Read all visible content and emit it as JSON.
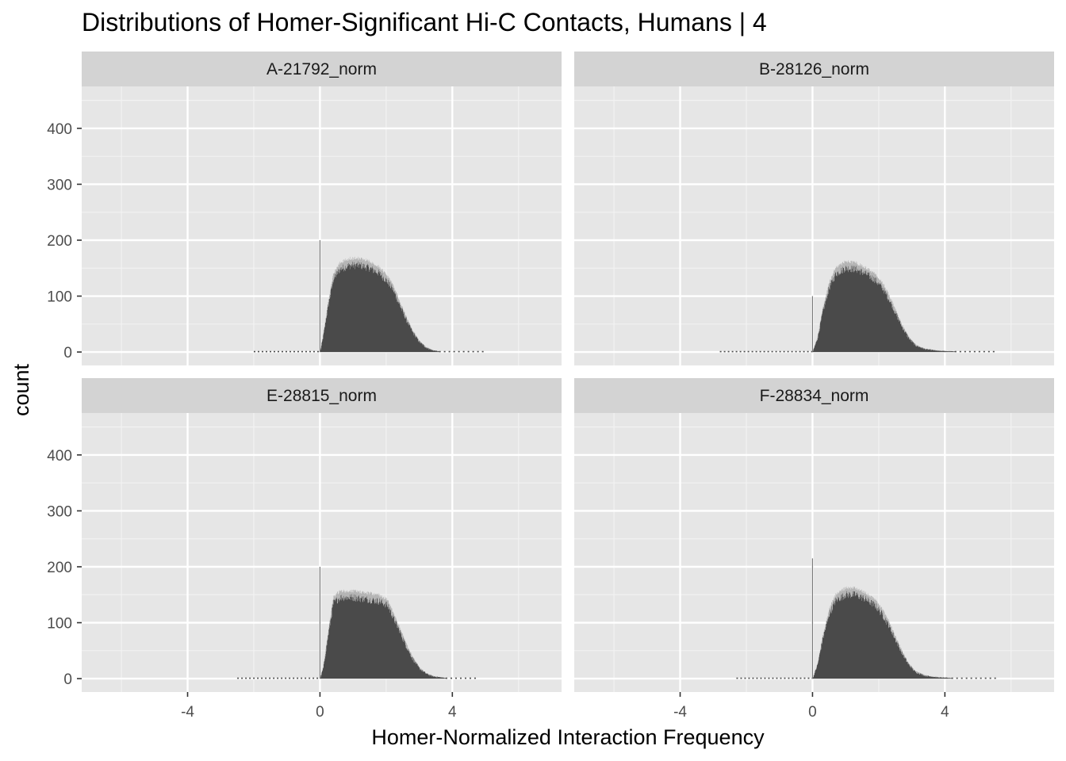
{
  "chart_data": {
    "type": "histogram",
    "title": "Distributions of Homer-Significant Hi-C Contacts, Humans | 4",
    "xlabel": "Homer-Normalized Interaction Frequency",
    "ylabel": "count",
    "xlim": [
      -7.2,
      7.3
    ],
    "ylim": [
      -24,
      475
    ],
    "x_ticks": [
      -4,
      0,
      4
    ],
    "x_tick_labels": [
      "-4",
      "0",
      "4"
    ],
    "y_ticks": [
      0,
      100,
      200,
      300,
      400
    ],
    "y_tick_labels": [
      "0",
      "100",
      "200",
      "300",
      "400"
    ],
    "grid": true,
    "legend": "none",
    "bar_color": "#4a4a4a",
    "panel_background": "#e6e6e6",
    "strip_background": "#d3d3d3",
    "panels": [
      {
        "name": "A-21792_norm",
        "tail_left": -2.0,
        "spike_x": 0.0,
        "spike_y": 200,
        "rise_x": 0.0,
        "fall_x": 3.6,
        "shape": [
          [
            0.0,
            0
          ],
          [
            0.1,
            30
          ],
          [
            0.25,
            85
          ],
          [
            0.4,
            130
          ],
          [
            0.6,
            148
          ],
          [
            0.9,
            155
          ],
          [
            1.2,
            155
          ],
          [
            1.5,
            150
          ],
          [
            1.8,
            140
          ],
          [
            2.0,
            128
          ],
          [
            2.2,
            112
          ],
          [
            2.4,
            85
          ],
          [
            2.6,
            58
          ],
          [
            2.8,
            35
          ],
          [
            3.0,
            18
          ],
          [
            3.2,
            8
          ],
          [
            3.4,
            3
          ],
          [
            3.6,
            1
          ]
        ],
        "tail_right": 5.0
      },
      {
        "name": "B-28126_norm",
        "tail_left": -2.8,
        "spike_x": 0.0,
        "spike_y": 100,
        "rise_x": 0.0,
        "fall_x": 4.3,
        "shape": [
          [
            0.0,
            0
          ],
          [
            0.15,
            25
          ],
          [
            0.3,
            70
          ],
          [
            0.5,
            115
          ],
          [
            0.7,
            140
          ],
          [
            1.0,
            150
          ],
          [
            1.3,
            148
          ],
          [
            1.6,
            140
          ],
          [
            1.9,
            128
          ],
          [
            2.1,
            115
          ],
          [
            2.3,
            95
          ],
          [
            2.5,
            70
          ],
          [
            2.7,
            45
          ],
          [
            2.9,
            25
          ],
          [
            3.1,
            12
          ],
          [
            3.4,
            5
          ],
          [
            3.8,
            2
          ],
          [
            4.3,
            1
          ]
        ],
        "tail_right": 5.5
      },
      {
        "name": "E-28815_norm",
        "tail_left": -2.5,
        "spike_x": 0.0,
        "spike_y": 200,
        "rise_x": 0.0,
        "fall_x": 3.8,
        "shape": [
          [
            0.0,
            0
          ],
          [
            0.1,
            20
          ],
          [
            0.25,
            80
          ],
          [
            0.4,
            135
          ],
          [
            0.6,
            145
          ],
          [
            1.0,
            145
          ],
          [
            1.4,
            142
          ],
          [
            1.8,
            138
          ],
          [
            2.05,
            130
          ],
          [
            2.2,
            110
          ],
          [
            2.4,
            85
          ],
          [
            2.6,
            58
          ],
          [
            2.8,
            35
          ],
          [
            3.0,
            18
          ],
          [
            3.2,
            9
          ],
          [
            3.4,
            4
          ],
          [
            3.8,
            1
          ]
        ],
        "tail_right": 4.8
      },
      {
        "name": "F-28834_norm",
        "tail_left": -2.3,
        "spike_x": 0.0,
        "spike_y": 215,
        "rise_x": 0.0,
        "fall_x": 4.2,
        "shape": [
          [
            0.0,
            0
          ],
          [
            0.15,
            25
          ],
          [
            0.3,
            70
          ],
          [
            0.5,
            115
          ],
          [
            0.7,
            140
          ],
          [
            1.0,
            150
          ],
          [
            1.3,
            150
          ],
          [
            1.6,
            142
          ],
          [
            1.9,
            130
          ],
          [
            2.1,
            115
          ],
          [
            2.3,
            95
          ],
          [
            2.5,
            70
          ],
          [
            2.7,
            45
          ],
          [
            2.9,
            25
          ],
          [
            3.1,
            12
          ],
          [
            3.4,
            5
          ],
          [
            3.8,
            2
          ],
          [
            4.2,
            1
          ]
        ],
        "tail_right": 5.6
      }
    ]
  }
}
